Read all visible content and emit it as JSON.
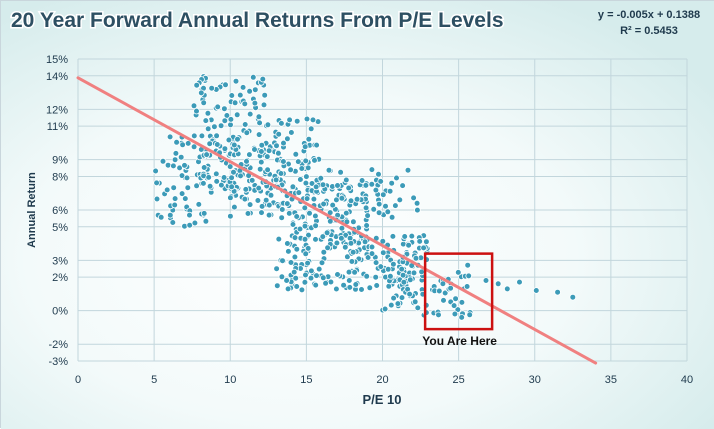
{
  "chart_data": {
    "type": "scatter",
    "title": "20 Year Forward Annual Returns From P/E Levels",
    "xlabel": "P/E 10",
    "ylabel": "Annual Return",
    "xlim": [
      0,
      40
    ],
    "ylim": [
      -0.03,
      0.15
    ],
    "x_ticks": [
      0,
      5,
      10,
      15,
      20,
      25,
      30,
      35,
      40
    ],
    "x_tick_labels": [
      "0",
      "5",
      "10",
      "15",
      "20",
      "25",
      "30",
      "35",
      "40"
    ],
    "y_ticks": [
      -0.03,
      -0.02,
      0.0,
      0.02,
      0.03,
      0.05,
      0.06,
      0.08,
      0.09,
      0.11,
      0.12,
      0.14,
      0.15
    ],
    "y_tick_labels": [
      "-3%",
      "-2%",
      "0%",
      "2%",
      "3%",
      "5%",
      "6%",
      "8%",
      "9%",
      "11%",
      "12%",
      "14%",
      "15%"
    ],
    "grid": true,
    "trendline": {
      "equation_label": "y = -0.005x + 0.1388",
      "r2_label": "R² = 0.5453",
      "slope": -0.005,
      "intercept": 0.1388,
      "x_range": [
        0,
        34
      ],
      "color": "#f08080"
    },
    "marker_color": "#3c9bb8",
    "annotation": {
      "text": "You Are Here",
      "box_x": [
        22.8,
        27.2
      ],
      "box_y": [
        -0.011,
        0.034
      ],
      "box_color": "#cc1111"
    },
    "clusters": [
      {
        "name": "pe-5-8",
        "x_range": [
          4.8,
          8.5
        ],
        "y_range": [
          0.05,
          0.105
        ],
        "count": 60
      },
      {
        "name": "pe-7-12-high",
        "x_range": [
          7.5,
          12.5
        ],
        "y_range": [
          0.095,
          0.14
        ],
        "count": 90
      },
      {
        "name": "pe-8-13-mid",
        "x_range": [
          8,
          13.5
        ],
        "y_range": [
          0.07,
          0.1
        ],
        "count": 110
      },
      {
        "name": "pe-10-14-low",
        "x_range": [
          10,
          14
        ],
        "y_range": [
          0.055,
          0.075
        ],
        "count": 40
      },
      {
        "name": "pe-12-16-upper",
        "x_range": [
          12,
          16
        ],
        "y_range": [
          0.07,
          0.115
        ],
        "count": 70
      },
      {
        "name": "pe-14-19-mid",
        "x_range": [
          14,
          19
        ],
        "y_range": [
          0.035,
          0.075
        ],
        "count": 130
      },
      {
        "name": "pe-16-22-upper",
        "x_range": [
          16,
          22.5
        ],
        "y_range": [
          0.055,
          0.085
        ],
        "count": 55
      },
      {
        "name": "pe-13-23-low",
        "x_range": [
          13,
          23
        ],
        "y_range": [
          0.012,
          0.045
        ],
        "count": 180
      },
      {
        "name": "pe-20-26-floor",
        "x_range": [
          20,
          26
        ],
        "y_range": [
          -0.003,
          0.03
        ],
        "count": 70
      }
    ],
    "outliers": [
      {
        "x": 26.8,
        "y": 0.018
      },
      {
        "x": 27.6,
        "y": 0.016
      },
      {
        "x": 28.2,
        "y": 0.013
      },
      {
        "x": 29.0,
        "y": 0.017
      },
      {
        "x": 30.1,
        "y": 0.012
      },
      {
        "x": 31.5,
        "y": 0.011
      },
      {
        "x": 32.5,
        "y": 0.008
      },
      {
        "x": 13.8,
        "y": 0.013
      },
      {
        "x": 13.7,
        "y": 0.018
      },
      {
        "x": 14.2,
        "y": 0.023
      },
      {
        "x": 25.2,
        "y": -0.004
      },
      {
        "x": 24.7,
        "y": 0.003
      }
    ]
  }
}
